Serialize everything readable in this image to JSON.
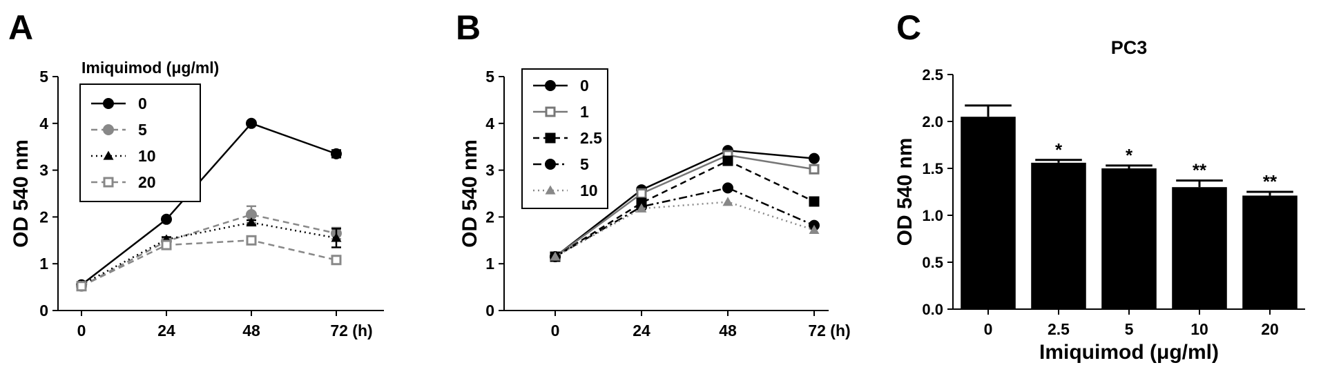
{
  "panels": {
    "A": {
      "letter": "A"
    },
    "B": {
      "letter": "B"
    },
    "C": {
      "letter": "C"
    }
  },
  "chart_data": [
    {
      "panel": "A",
      "type": "line",
      "title": "",
      "xlabel": "",
      "ylabel": "OD 540 nm",
      "x": [
        0,
        24,
        48,
        72
      ],
      "x_tick_labels": [
        "0",
        "24",
        "48",
        "72 (h)"
      ],
      "ylim": [
        0,
        5
      ],
      "y_ticks": [
        0,
        1,
        2,
        3,
        4,
        5
      ],
      "grid": false,
      "legend_title": "Imiquimod (μg/ml)",
      "legend_position": "top-left",
      "series": [
        {
          "name": "0",
          "values": [
            0.55,
            1.95,
            4.0,
            3.35
          ],
          "errors": [
            0.03,
            0.03,
            0.03,
            0.08
          ],
          "color": "#000000",
          "dash": "solid",
          "marker": "circle-filled"
        },
        {
          "name": "5",
          "values": [
            0.52,
            1.48,
            2.05,
            1.65
          ],
          "errors": [
            0.03,
            0.05,
            0.18,
            0.12
          ],
          "color": "#888888",
          "dash": "dashed",
          "marker": "circle-filled"
        },
        {
          "name": "10",
          "values": [
            0.55,
            1.52,
            1.88,
            1.55
          ],
          "errors": [
            0.03,
            0.05,
            0.05,
            0.2
          ],
          "color": "#000000",
          "dash": "dotted",
          "marker": "triangle-filled"
        },
        {
          "name": "20",
          "values": [
            0.52,
            1.4,
            1.5,
            1.08
          ],
          "errors": [
            0.03,
            0.05,
            0.08,
            0.08
          ],
          "color": "#888888",
          "dash": "dashed",
          "marker": "square-open"
        }
      ]
    },
    {
      "panel": "B",
      "type": "line",
      "title": "",
      "xlabel": "",
      "ylabel": "OD 540 nm",
      "x": [
        0,
        24,
        48,
        72
      ],
      "x_tick_labels": [
        "0",
        "24",
        "48",
        "72 (h)"
      ],
      "ylim": [
        0,
        5
      ],
      "y_ticks": [
        0,
        1,
        2,
        3,
        4,
        5
      ],
      "grid": false,
      "legend_position": "top-left",
      "series": [
        {
          "name": "0",
          "values": [
            1.15,
            2.58,
            3.42,
            3.25
          ],
          "color": "#000000",
          "dash": "solid",
          "marker": "circle-filled"
        },
        {
          "name": "1",
          "values": [
            1.15,
            2.5,
            3.32,
            3.02
          ],
          "color": "#777777",
          "dash": "solid",
          "marker": "square-open"
        },
        {
          "name": "2.5",
          "values": [
            1.15,
            2.3,
            3.2,
            2.33
          ],
          "color": "#000000",
          "dash": "dashed",
          "marker": "square-filled"
        },
        {
          "name": "5",
          "values": [
            1.15,
            2.22,
            2.62,
            1.82
          ],
          "color": "#000000",
          "dash": "dashdot",
          "marker": "circle-filled"
        },
        {
          "name": "10",
          "values": [
            1.15,
            2.18,
            2.32,
            1.72
          ],
          "color": "#888888",
          "dash": "dotted",
          "marker": "triangle-filled"
        }
      ]
    },
    {
      "panel": "C",
      "type": "bar",
      "title": "PC3",
      "xlabel": "Imiquimod (μg/ml)",
      "ylabel": "OD 540 nm",
      "categories": [
        "0",
        "2.5",
        "5",
        "10",
        "20"
      ],
      "values": [
        2.05,
        1.56,
        1.5,
        1.3,
        1.21
      ],
      "errors": [
        0.12,
        0.03,
        0.03,
        0.07,
        0.04
      ],
      "significance": [
        "",
        "*",
        "*",
        "**",
        "**"
      ],
      "ylim": [
        0,
        2.5
      ],
      "y_ticks": [
        0.0,
        0.5,
        1.0,
        1.5,
        2.0,
        2.5
      ],
      "y_tick_labels": [
        "0.0",
        "0.5",
        "1.0",
        "1.5",
        "2.0",
        "2.5"
      ],
      "grid": false,
      "bar_color": "#000000"
    }
  ]
}
